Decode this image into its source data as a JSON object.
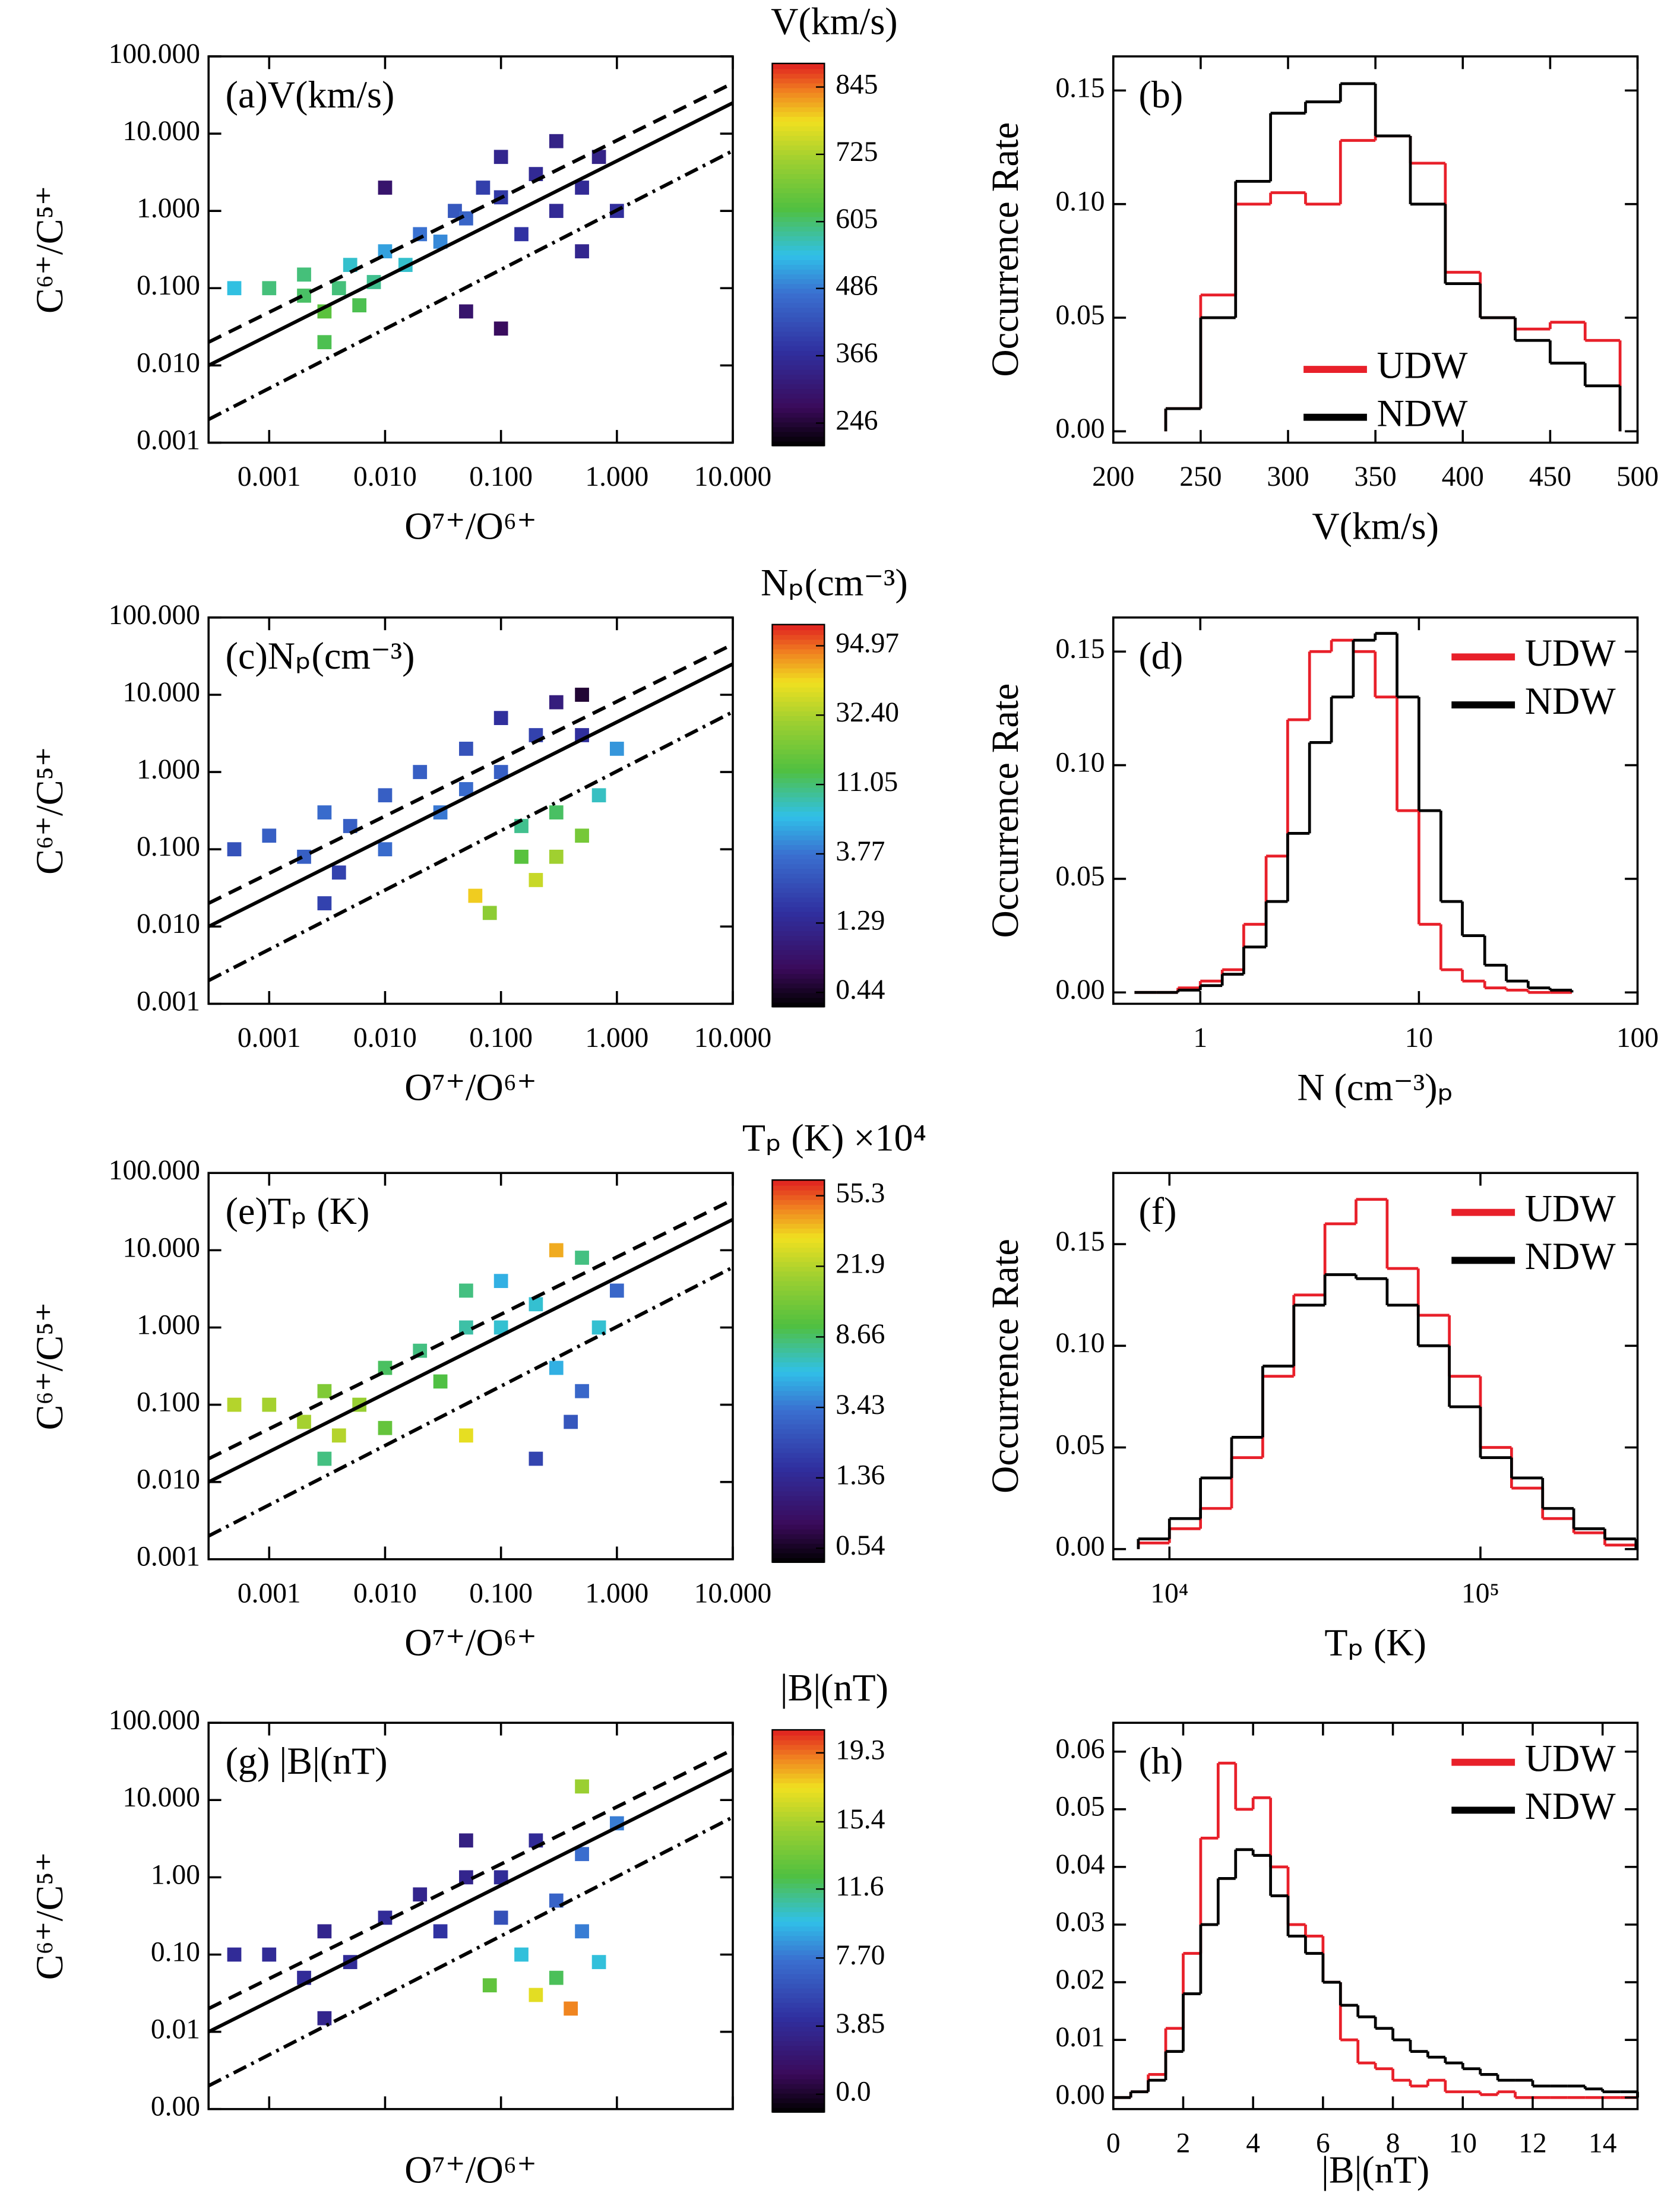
{
  "chart_data": [
    {
      "type": "heatmap",
      "title": "(a)V(km/s)",
      "xlabel": "O⁷⁺/O⁶⁺",
      "ylabel": "C⁶⁺/C⁵⁺",
      "log_x": true,
      "log_y": true,
      "xlim": [
        0.0003,
        10
      ],
      "ylim": [
        0.001,
        100
      ],
      "xticks": [
        0.001,
        {
          "value": 0.01,
          "label": "0.010"
        },
        {
          "value": 0.1,
          "label": "0.100"
        },
        {
          "value": 1,
          "label": "1.000"
        },
        {
          "value": 10,
          "label": "10.000"
        }
      ],
      "yticks": [
        0.001,
        {
          "value": 0.01,
          "label": "0.010"
        },
        {
          "value": 0.1,
          "label": "0.100"
        },
        {
          "value": 1,
          "label": "1.000"
        },
        {
          "value": 10,
          "label": "10.000"
        },
        {
          "value": 100,
          "label": "100.000"
        }
      ],
      "show_xtick_labels": true,
      "x": [
        0.0005,
        0.001,
        0.002,
        0.002,
        0.003,
        0.004,
        0.005,
        0.006,
        0.008,
        0.01,
        0.015,
        0.02,
        0.03,
        0.04,
        0.05,
        0.07,
        0.1,
        0.1,
        0.15,
        0.2,
        0.3,
        0.3,
        0.5,
        0.5,
        0.7,
        1,
        0.05,
        0.1,
        0.01,
        0.003
      ],
      "y": [
        0.1,
        0.1,
        0.08,
        0.15,
        0.05,
        0.1,
        0.2,
        0.06,
        0.12,
        0.3,
        0.2,
        0.5,
        0.4,
        1,
        0.8,
        2,
        1.5,
        5,
        0.5,
        3,
        1,
        8,
        0.3,
        2,
        5,
        1,
        0.05,
        0.03,
        2,
        0.02
      ],
      "values": [
        550,
        600,
        610,
        600,
        640,
        600,
        560,
        620,
        590,
        520,
        560,
        480,
        500,
        440,
        460,
        400,
        390,
        350,
        380,
        360,
        360,
        340,
        350,
        360,
        340,
        370,
        300,
        280,
        300,
        620
      ],
      "lines": [
        {
          "style": "solid",
          "x": [
            0.0003,
            10
          ],
          "y": [
            0.01,
            25
          ]
        },
        {
          "style": "dashed",
          "x": [
            0.0003,
            10
          ],
          "y": [
            0.02,
            45
          ]
        },
        {
          "style": "dashdot",
          "x": [
            0.0003,
            10
          ],
          "y": [
            0.002,
            6
          ]
        }
      ],
      "colorbar": {
        "title": "V(km/s)",
        "scale": "linear",
        "lim": [
          206,
          887
        ],
        "ticks": [
          246,
          366,
          486,
          605,
          725,
          845
        ]
      }
    },
    {
      "type": "histogram",
      "title": "(b)",
      "xlabel": "V(km/s)",
      "ylabel": "Occurrence Rate",
      "log_x": false,
      "xlim": [
        200,
        500
      ],
      "ylim": [
        -0.005,
        0.165
      ],
      "xticks": [
        200,
        250,
        300,
        350,
        400,
        450,
        500
      ],
      "yticks": [
        {
          "value": 0,
          "label": "0.00"
        },
        0.05,
        {
          "value": 0.1,
          "label": "0.10"
        },
        0.15
      ],
      "bins": [
        230,
        250,
        270,
        290,
        310,
        330,
        350,
        370,
        390,
        410,
        430,
        450,
        470,
        490
      ],
      "legend": "lower center",
      "series": [
        {
          "name": "UDW",
          "color": "#e8202a",
          "values": [
            0.01,
            0.06,
            0.1,
            0.105,
            0.1,
            0.128,
            0.13,
            0.118,
            0.07,
            0.05,
            0.045,
            0.048,
            0.04
          ]
        },
        {
          "name": "NDW",
          "color": "#000000",
          "values": [
            0.01,
            0.05,
            0.11,
            0.14,
            0.145,
            0.153,
            0.13,
            0.1,
            0.065,
            0.05,
            0.04,
            0.03,
            0.02
          ]
        }
      ]
    },
    {
      "type": "heatmap",
      "title": "(c)Nₚ(cm⁻³)",
      "xlabel": "O⁷⁺/O⁶⁺",
      "ylabel": "C⁶⁺/C⁵⁺",
      "log_x": true,
      "log_y": true,
      "xlim": [
        0.0003,
        10
      ],
      "ylim": [
        0.001,
        100
      ],
      "xticks": [
        0.001,
        {
          "value": 0.01,
          "label": "0.010"
        },
        {
          "value": 0.1,
          "label": "0.100"
        },
        {
          "value": 1,
          "label": "1.000"
        },
        {
          "value": 10,
          "label": "10.000"
        }
      ],
      "yticks": [
        0.001,
        {
          "value": 0.01,
          "label": "0.010"
        },
        {
          "value": 0.1,
          "label": "0.100"
        },
        {
          "value": 1,
          "label": "1.000"
        },
        {
          "value": 10,
          "label": "10.000"
        },
        {
          "value": 100,
          "label": "100.000"
        }
      ],
      "show_xtick_labels": true,
      "x": [
        0.0005,
        0.001,
        0.002,
        0.003,
        0.004,
        0.005,
        0.01,
        0.01,
        0.02,
        0.03,
        0.05,
        0.05,
        0.1,
        0.1,
        0.2,
        0.3,
        0.5,
        0.15,
        0.3,
        0.5,
        0.7,
        0.3,
        0.06,
        0.08,
        0.2,
        0.15,
        1,
        0.5,
        0.003
      ],
      "y": [
        0.1,
        0.15,
        0.08,
        0.3,
        0.05,
        0.2,
        0.5,
        0.1,
        1,
        0.3,
        2,
        0.6,
        1,
        5,
        3,
        8,
        3,
        0.2,
        0.3,
        0.15,
        0.5,
        0.08,
        0.025,
        0.015,
        0.04,
        0.08,
        2,
        10,
        0.02
      ],
      "values": [
        2.5,
        3,
        3,
        3.5,
        2,
        3,
        3,
        3.5,
        3,
        4,
        2.5,
        3.5,
        3,
        1.5,
        2,
        1,
        1.5,
        10,
        12,
        20,
        8,
        30,
        60,
        25,
        40,
        15,
        5,
        0.5,
        2
      ],
      "lines": [
        {
          "style": "solid",
          "x": [
            0.0003,
            10
          ],
          "y": [
            0.01,
            25
          ]
        },
        {
          "style": "dashed",
          "x": [
            0.0003,
            10
          ],
          "y": [
            0.02,
            45
          ]
        },
        {
          "style": "dashdot",
          "x": [
            0.0003,
            10
          ],
          "y": [
            0.002,
            6
          ]
        }
      ],
      "colorbar": {
        "title": "Nₚ(cm⁻³)",
        "scale": "log",
        "lim": [
          0.353,
          132
        ],
        "ticks": [
          0.44,
          1.29,
          3.77,
          11.05,
          {
            "value": 32.4,
            "label": "32.40"
          },
          94.97
        ]
      }
    },
    {
      "type": "histogram",
      "title": "(d)",
      "xlabel": "N (cm⁻³)ₚ",
      "ylabel": "Occurrence Rate",
      "log_x": true,
      "xlim": [
        0.4,
        100
      ],
      "ylim": [
        -0.005,
        0.165
      ],
      "xticks": [
        1,
        10,
        100
      ],
      "yticks": [
        {
          "value": 0,
          "label": "0.00"
        },
        0.05,
        {
          "value": 0.1,
          "label": "0.10"
        },
        0.15
      ],
      "bins": [
        0.5,
        0.63,
        0.79,
        1,
        1.26,
        1.58,
        2,
        2.51,
        3.16,
        3.98,
        5.01,
        6.31,
        7.94,
        10,
        12.6,
        15.8,
        20,
        25.1,
        31.6,
        39.8,
        50.1
      ],
      "legend": "upper right",
      "series": [
        {
          "name": "UDW",
          "color": "#e8202a",
          "values": [
            0,
            0,
            0.002,
            0.005,
            0.01,
            0.03,
            0.06,
            0.12,
            0.15,
            0.155,
            0.15,
            0.13,
            0.08,
            0.03,
            0.01,
            0.005,
            0.002,
            0.001,
            0,
            0
          ]
        },
        {
          "name": "NDW",
          "color": "#000000",
          "values": [
            0,
            0,
            0.001,
            0.003,
            0.008,
            0.02,
            0.04,
            0.07,
            0.11,
            0.13,
            0.155,
            0.158,
            0.13,
            0.08,
            0.04,
            0.025,
            0.012,
            0.005,
            0.002,
            0.001
          ]
        }
      ]
    },
    {
      "type": "heatmap",
      "title": "(e)Tₚ (K)",
      "xlabel": "O⁷⁺/O⁶⁺",
      "ylabel": "C⁶⁺/C⁵⁺",
      "log_x": true,
      "log_y": true,
      "xlim": [
        0.0003,
        10
      ],
      "ylim": [
        0.001,
        100
      ],
      "xticks": [
        0.001,
        {
          "value": 0.01,
          "label": "0.010"
        },
        {
          "value": 0.1,
          "label": "0.100"
        },
        {
          "value": 1,
          "label": "1.000"
        },
        {
          "value": 10,
          "label": "10.000"
        }
      ],
      "yticks": [
        0.001,
        {
          "value": 0.01,
          "label": "0.010"
        },
        {
          "value": 0.1,
          "label": "0.100"
        },
        {
          "value": 1,
          "label": "1.000"
        },
        {
          "value": 10,
          "label": "10.000"
        },
        {
          "value": 100,
          "label": "100.000"
        }
      ],
      "show_xtick_labels": true,
      "x": [
        0.0005,
        0.001,
        0.002,
        0.003,
        0.004,
        0.006,
        0.01,
        0.01,
        0.02,
        0.03,
        0.05,
        0.05,
        0.1,
        0.1,
        0.2,
        0.3,
        0.5,
        0.4,
        0.7,
        0.5,
        1,
        0.2,
        0.3,
        0.05,
        0.003
      ],
      "y": [
        0.1,
        0.1,
        0.06,
        0.15,
        0.04,
        0.1,
        0.3,
        0.05,
        0.5,
        0.2,
        1,
        0.04,
        1,
        4,
        2,
        0.3,
        0.15,
        0.06,
        1,
        8,
        3,
        0.02,
        10,
        3,
        0.02
      ],
      "values": [
        22,
        20,
        20,
        15,
        22,
        18,
        9,
        12,
        8,
        10,
        7,
        30,
        6,
        5,
        6,
        5,
        3,
        2.5,
        6,
        8,
        3,
        2,
        40,
        8,
        8
      ],
      "lines": [
        {
          "style": "solid",
          "x": [
            0.0003,
            10
          ],
          "y": [
            0.01,
            25
          ]
        },
        {
          "style": "dashed",
          "x": [
            0.0003,
            10
          ],
          "y": [
            0.02,
            45
          ]
        },
        {
          "style": "dashdot",
          "x": [
            0.0003,
            10
          ],
          "y": [
            0.002,
            6
          ]
        }
      ],
      "colorbar": {
        "title": "Tₚ (K) ×10⁴",
        "scale": "log",
        "lim": [
          0.45,
          68
        ],
        "ticks": [
          0.54,
          1.36,
          3.43,
          8.66,
          21.9,
          55.3
        ]
      }
    },
    {
      "type": "histogram",
      "title": "(f)",
      "xlabel": "Tₚ (K)",
      "ylabel": "Occurrence Rate",
      "log_x": true,
      "xlim": [
        6600,
        320000
      ],
      "ylim": [
        -0.005,
        0.185
      ],
      "xticks": [
        {
          "value": 10000,
          "label": "10⁴"
        },
        {
          "value": 100000,
          "label": "10⁵"
        }
      ],
      "yticks": [
        {
          "value": 0,
          "label": "0.00"
        },
        0.05,
        {
          "value": 0.1,
          "label": "0.10"
        },
        0.15
      ],
      "bins": [
        7943,
        10000,
        12589,
        15849,
        19953,
        25119,
        31623,
        39811,
        50119,
        63096,
        79433,
        100000,
        125893,
        158489,
        199526,
        251189,
        316228
      ],
      "legend": "upper right",
      "series": [
        {
          "name": "UDW",
          "color": "#e8202a",
          "values": [
            0.003,
            0.01,
            0.02,
            0.045,
            0.085,
            0.125,
            0.16,
            0.172,
            0.138,
            0.115,
            0.085,
            0.05,
            0.03,
            0.015,
            0.008,
            0.002
          ]
        },
        {
          "name": "NDW",
          "color": "#000000",
          "values": [
            0.005,
            0.015,
            0.035,
            0.055,
            0.09,
            0.12,
            0.135,
            0.133,
            0.12,
            0.1,
            0.07,
            0.045,
            0.035,
            0.02,
            0.01,
            0.005
          ]
        }
      ]
    },
    {
      "type": "heatmap",
      "title": "(g) |B|(nT)",
      "xlabel": "O⁷⁺/O⁶⁺",
      "ylabel": "C⁶⁺/C⁵⁺",
      "log_x": true,
      "log_y": true,
      "xlim": [
        0.0003,
        10
      ],
      "ylim": [
        0.001,
        100
      ],
      "xticks": [
        0.001,
        0.01,
        0.1,
        1,
        10
      ],
      "yticks": [
        {
          "value": 0.001,
          "label": "0.00"
        },
        0.01,
        {
          "value": 0.1,
          "label": "0.10"
        },
        {
          "value": 1,
          "label": "1.00"
        },
        {
          "value": 10,
          "label": "10.000"
        },
        {
          "value": 100,
          "label": "100.000"
        }
      ],
      "show_xtick_labels": false,
      "x": [
        0.0005,
        0.001,
        0.002,
        0.003,
        0.005,
        0.01,
        0.02,
        0.03,
        0.05,
        0.05,
        0.1,
        0.1,
        0.2,
        0.3,
        0.5,
        0.5,
        0.7,
        0.3,
        0.2,
        0.4,
        1,
        0.5,
        0.15,
        0.003,
        0.08
      ],
      "y": [
        0.1,
        0.1,
        0.05,
        0.2,
        0.08,
        0.3,
        0.6,
        0.2,
        1,
        3,
        1,
        0.3,
        3,
        0.5,
        0.2,
        2,
        0.08,
        0.05,
        0.03,
        0.02,
        5,
        15,
        0.1,
        0.015,
        0.04
      ],
      "values": [
        4,
        4,
        4,
        3.5,
        4,
        4,
        3.5,
        4.5,
        3.5,
        3,
        4,
        6,
        4,
        7,
        8,
        7.5,
        10,
        12,
        17,
        19,
        8,
        15,
        10,
        3.5,
        13
      ],
      "lines": [
        {
          "style": "solid",
          "x": [
            0.0003,
            10
          ],
          "y": [
            0.01,
            25
          ]
        },
        {
          "style": "dashed",
          "x": [
            0.0003,
            10
          ],
          "y": [
            0.02,
            45
          ]
        },
        {
          "style": "dashdot",
          "x": [
            0.0003,
            10
          ],
          "y": [
            0.002,
            6
          ]
        }
      ],
      "colorbar": {
        "title": "|B|(nT)",
        "scale": "linear",
        "lim": [
          -1,
          20.6
        ],
        "ticks": [
          {
            "value": 0,
            "label": "0.0"
          },
          3.85,
          {
            "value": 7.7,
            "label": "7.70"
          },
          11.6,
          15.4,
          19.3
        ]
      }
    },
    {
      "type": "histogram",
      "title": "(h)",
      "xlabel": "|B|(nT)",
      "log_x": false,
      "xlim": [
        0,
        15
      ],
      "ylim": [
        -0.002,
        0.065
      ],
      "xticks": [
        0,
        2,
        4,
        6,
        8,
        10,
        12,
        14
      ],
      "yticks": [
        {
          "value": 0,
          "label": "0.00"
        },
        0.01,
        0.02,
        0.03,
        0.04,
        0.05,
        0.06
      ],
      "bins": [
        0,
        0.5,
        1,
        1.5,
        2,
        2.5,
        3,
        3.5,
        4,
        4.5,
        5,
        5.5,
        6,
        6.5,
        7,
        7.5,
        8,
        8.5,
        9,
        9.5,
        10,
        10.5,
        11,
        11.5,
        12,
        12.5,
        13,
        13.5,
        14,
        14.5,
        15
      ],
      "legend": "upper right",
      "series": [
        {
          "name": "UDW",
          "color": "#e8202a",
          "values": [
            0,
            0.001,
            0.004,
            0.012,
            0.025,
            0.045,
            0.058,
            0.05,
            0.052,
            0.04,
            0.03,
            0.028,
            0.02,
            0.01,
            0.006,
            0.005,
            0.003,
            0.002,
            0.003,
            0.001,
            0.001,
            0.0005,
            0.001,
            0,
            0,
            0,
            0,
            0,
            0,
            0
          ]
        },
        {
          "name": "NDW",
          "color": "#000000",
          "values": [
            0,
            0.001,
            0.003,
            0.008,
            0.018,
            0.03,
            0.038,
            0.043,
            0.042,
            0.035,
            0.028,
            0.025,
            0.02,
            0.016,
            0.014,
            0.012,
            0.01,
            0.008,
            0.007,
            0.006,
            0.005,
            0.004,
            0.003,
            0.003,
            0.002,
            0.002,
            0.002,
            0.0015,
            0.001,
            0.001
          ]
        }
      ]
    }
  ]
}
